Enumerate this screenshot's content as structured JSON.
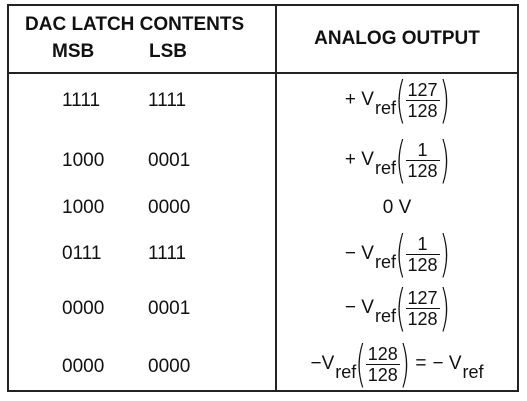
{
  "header": {
    "left_title": "DAC LATCH CONTENTS",
    "msb": "MSB",
    "lsb": "LSB",
    "right_title": "ANALOG OUTPUT"
  },
  "rows": [
    {
      "msb": "1111",
      "lsb": "1111",
      "sign": "+ V",
      "sub": "ref",
      "num": "127",
      "den": "128"
    },
    {
      "msb": "1000",
      "lsb": "0001",
      "sign": "+ V",
      "sub": "ref",
      "num": "1",
      "den": "128"
    },
    {
      "msb": "1000",
      "lsb": "0000",
      "text": "0 V"
    },
    {
      "msb": "0111",
      "lsb": "1111",
      "sign": "− V",
      "sub": "ref",
      "num": "1",
      "den": "128"
    },
    {
      "msb": "0000",
      "lsb": "0001",
      "sign": "− V",
      "sub": "ref",
      "num": "127",
      "den": "128"
    },
    {
      "msb": "0000",
      "lsb": "0000",
      "sign": "−V",
      "sub": "ref",
      "num": "128",
      "den": "128",
      "eq": "=",
      "rhs": "− V",
      "rhs_sub": "ref"
    }
  ],
  "parens": {
    "open": "(",
    "close": ")"
  }
}
